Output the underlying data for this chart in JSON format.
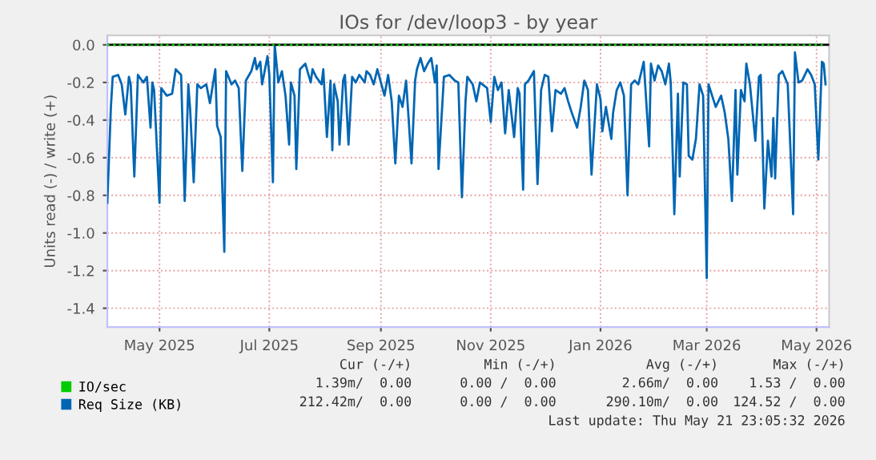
{
  "chart_data": {
    "type": "line",
    "title": "IOs for /dev/loop3 - by year",
    "ylabel": "Units read (-) / write (+)",
    "xlim": [
      "2025-04-17",
      "2026-05-23"
    ],
    "ylim": [
      -1.5,
      0.05
    ],
    "xticks": [
      {
        "value": "2025-05-16",
        "label": "May 2025"
      },
      {
        "value": "2025-07-16",
        "label": "Jul 2025"
      },
      {
        "value": "2025-09-16",
        "label": "Sep 2025"
      },
      {
        "value": "2025-11-16",
        "label": "Nov 2025"
      },
      {
        "value": "2026-01-16",
        "label": "Jan 2026"
      },
      {
        "value": "2026-03-16",
        "label": "Mar 2026"
      },
      {
        "value": "2026-05-16",
        "label": "May 2026"
      }
    ],
    "yticks": [
      -1.4,
      -1.2,
      {
        "value": -1,
        "label": "-1.0"
      },
      -0.8,
      -0.6,
      -0.4,
      -0.2,
      {
        "value": 0,
        "label": "0.0"
      }
    ],
    "grid": true,
    "legend": "bottom left",
    "ref_lines": [
      {
        "axis": "y",
        "value": 0,
        "color": "#000000"
      }
    ],
    "series": [
      {
        "name": "IO/sec",
        "color": "#00cc00",
        "line_style": "dotted",
        "x": [
          "2025-04-17",
          "2026-05-21"
        ],
        "values": [
          0,
          0
        ]
      },
      {
        "name": "Req Size (KB)",
        "color": "#0066b3",
        "x": [
          "2025-04-17",
          "2025-04-19",
          "2025-04-20",
          "2025-04-23",
          "2025-04-25",
          "2025-04-27",
          "2025-04-29",
          "2025-04-30",
          "2025-05-02",
          "2025-05-04",
          "2025-05-07",
          "2025-05-09",
          "2025-05-11",
          "2025-05-12",
          "2025-05-13",
          "2025-05-16",
          "2025-05-17",
          "2025-05-20",
          "2025-05-23",
          "2025-05-25",
          "2025-05-28",
          "2025-05-30",
          "2025-06-01",
          "2025-06-02",
          "2025-06-04",
          "2025-06-06",
          "2025-06-08",
          "2025-06-11",
          "2025-06-13",
          "2025-06-16",
          "2025-06-17",
          "2025-06-19",
          "2025-06-21",
          "2025-06-22",
          "2025-06-25",
          "2025-06-27",
          "2025-06-29",
          "2025-07-01",
          "2025-07-03",
          "2025-07-06",
          "2025-07-08",
          "2025-07-09",
          "2025-07-11",
          "2025-07-12",
          "2025-07-15",
          "2025-07-16",
          "2025-07-18",
          "2025-07-19",
          "2025-07-21",
          "2025-07-23",
          "2025-07-25",
          "2025-07-27",
          "2025-07-28",
          "2025-07-30",
          "2025-07-31",
          "2025-08-02",
          "2025-08-05",
          "2025-08-08",
          "2025-08-09",
          "2025-08-11",
          "2025-08-14",
          "2025-08-15",
          "2025-08-17",
          "2025-08-19",
          "2025-08-20",
          "2025-08-21",
          "2025-08-23",
          "2025-08-24",
          "2025-08-26",
          "2025-08-27",
          "2025-08-29",
          "2025-08-31",
          "2025-09-02",
          "2025-09-04",
          "2025-09-07",
          "2025-09-08",
          "2025-09-10",
          "2025-09-12",
          "2025-09-14",
          "2025-09-16",
          "2025-09-18",
          "2025-09-20",
          "2025-09-22",
          "2025-09-24",
          "2025-09-26",
          "2025-09-28",
          "2025-09-30",
          "2025-10-03",
          "2025-10-05",
          "2025-10-06",
          "2025-10-08",
          "2025-10-10",
          "2025-10-12",
          "2025-10-14",
          "2025-10-16",
          "2025-10-17",
          "2025-10-18",
          "2025-10-21",
          "2025-10-24",
          "2025-10-27",
          "2025-10-29",
          "2025-10-31",
          "2025-11-02",
          "2025-11-03",
          "2025-11-06",
          "2025-11-08",
          "2025-11-10",
          "2025-11-14",
          "2025-11-16",
          "2025-11-18",
          "2025-11-20",
          "2025-11-22",
          "2025-11-24",
          "2025-11-26",
          "2025-11-29",
          "2025-12-01",
          "2025-12-02",
          "2025-12-04",
          "2025-12-05",
          "2025-12-07",
          "2025-12-10",
          "2025-12-12",
          "2025-12-14",
          "2025-12-16",
          "2025-12-18",
          "2025-12-20",
          "2025-12-22",
          "2025-12-25",
          "2025-12-27",
          "2025-12-29",
          "2025-12-31",
          "2026-01-03",
          "2026-01-05",
          "2026-01-07",
          "2026-01-09",
          "2026-01-11",
          "2026-01-14",
          "2026-01-16",
          "2026-01-17",
          "2026-01-19",
          "2026-01-22",
          "2026-01-23",
          "2026-01-25",
          "2026-01-27",
          "2026-01-29",
          "2026-01-31",
          "2026-02-02",
          "2026-02-04",
          "2026-02-06",
          "2026-02-08",
          "2026-02-09",
          "2026-02-12",
          "2026-02-13",
          "2026-02-15",
          "2026-02-17",
          "2026-02-19",
          "2026-02-21",
          "2026-02-23",
          "2026-02-24",
          "2026-02-26",
          "2026-02-28",
          "2026-03-01",
          "2026-03-03",
          "2026-03-05",
          "2026-03-06",
          "2026-03-08",
          "2026-03-10",
          "2026-03-12",
          "2026-03-14",
          "2026-03-16",
          "2026-03-17",
          "2026-03-19",
          "2026-03-21",
          "2026-03-24",
          "2026-03-26",
          "2026-03-28",
          "2026-03-30",
          "2026-04-01",
          "2026-04-02",
          "2026-04-04",
          "2026-04-06",
          "2026-04-07",
          "2026-04-09",
          "2026-04-12",
          "2026-04-14",
          "2026-04-15",
          "2026-04-17",
          "2026-04-19",
          "2026-04-21",
          "2026-04-22",
          "2026-04-23",
          "2026-04-25",
          "2026-04-27",
          "2026-04-30",
          "2026-05-03",
          "2026-05-04",
          "2026-05-06",
          "2026-05-08",
          "2026-05-11",
          "2026-05-13",
          "2026-05-15",
          "2026-05-17",
          "2026-05-19",
          "2026-05-20",
          "2026-05-21"
        ],
        "values": [
          -0.84,
          -0.33,
          -0.17,
          -0.16,
          -0.21,
          -0.37,
          -0.17,
          -0.21,
          -0.7,
          -0.16,
          -0.2,
          -0.17,
          -0.44,
          -0.2,
          -0.24,
          -0.84,
          -0.23,
          -0.27,
          -0.26,
          -0.13,
          -0.16,
          -0.83,
          -0.21,
          -0.34,
          -0.73,
          -0.21,
          -0.23,
          -0.21,
          -0.31,
          -0.13,
          -0.43,
          -0.49,
          -1.1,
          -0.14,
          -0.21,
          -0.19,
          -0.23,
          -0.67,
          -0.19,
          -0.14,
          -0.07,
          -0.13,
          -0.09,
          -0.21,
          -0.06,
          -0.16,
          -0.73,
          0.0,
          -0.2,
          -0.14,
          -0.27,
          -0.53,
          -0.2,
          -0.27,
          -0.66,
          -0.13,
          -0.1,
          -0.2,
          -0.13,
          -0.17,
          -0.21,
          -0.13,
          -0.49,
          -0.19,
          -0.56,
          -0.21,
          -0.3,
          -0.53,
          -0.19,
          -0.16,
          -0.53,
          -0.17,
          -0.2,
          -0.16,
          -0.2,
          -0.14,
          -0.16,
          -0.21,
          -0.13,
          -0.2,
          -0.27,
          -0.16,
          -0.3,
          -0.63,
          -0.27,
          -0.33,
          -0.19,
          -0.63,
          -0.19,
          -0.13,
          -0.07,
          -0.14,
          -0.1,
          -0.07,
          -0.2,
          -0.11,
          -0.66,
          -0.17,
          -0.16,
          -0.19,
          -0.2,
          -0.81,
          -0.3,
          -0.17,
          -0.21,
          -0.3,
          -0.2,
          -0.23,
          -0.41,
          -0.17,
          -0.24,
          -0.2,
          -0.47,
          -0.24,
          -0.49,
          -0.23,
          -0.26,
          -0.77,
          -0.21,
          -0.19,
          -0.14,
          -0.74,
          -0.24,
          -0.16,
          -0.17,
          -0.46,
          -0.24,
          -0.26,
          -0.23,
          -0.3,
          -0.36,
          -0.44,
          -0.33,
          -0.19,
          -0.24,
          -0.69,
          -0.21,
          -0.29,
          -0.46,
          -0.33,
          -0.5,
          -0.36,
          -0.24,
          -0.2,
          -0.27,
          -0.8,
          -0.21,
          -0.19,
          -0.21,
          -0.13,
          -0.09,
          -0.54,
          -0.1,
          -0.19,
          -0.11,
          -0.14,
          -0.21,
          -0.1,
          -0.2,
          -0.9,
          -0.26,
          -0.7,
          -0.2,
          -0.21,
          -0.59,
          -0.61,
          -0.5,
          -0.21,
          -0.27,
          -1.24,
          -0.21,
          -0.27,
          -0.33,
          -0.27,
          -0.36,
          -0.5,
          -0.83,
          -0.24,
          -0.69,
          -0.24,
          -0.3,
          -0.1,
          -0.21,
          -0.51,
          -0.17,
          -0.16,
          -0.87,
          -0.51,
          -0.7,
          -0.39,
          -0.71,
          -0.16,
          -0.14,
          -0.21,
          -0.9,
          -0.04,
          -0.2,
          -0.19,
          -0.13,
          -0.16,
          -0.21,
          -0.61,
          -0.09,
          -0.1,
          -0.21
        ]
      }
    ],
    "annotations": [
      "Cur (-/+)",
      "Min (-/+)",
      "Avg (-/+)",
      "Max (-/+)",
      "1.39m/  0.00",
      "0.00 /  0.00",
      "2.66m/  0.00",
      "1.53 /  0.00",
      "212.42m/  0.00",
      "0.00 /  0.00",
      "290.10m/  0.00",
      "124.52 /  0.00",
      "Last update: Thu May 21 23:05:32 2026"
    ]
  }
}
